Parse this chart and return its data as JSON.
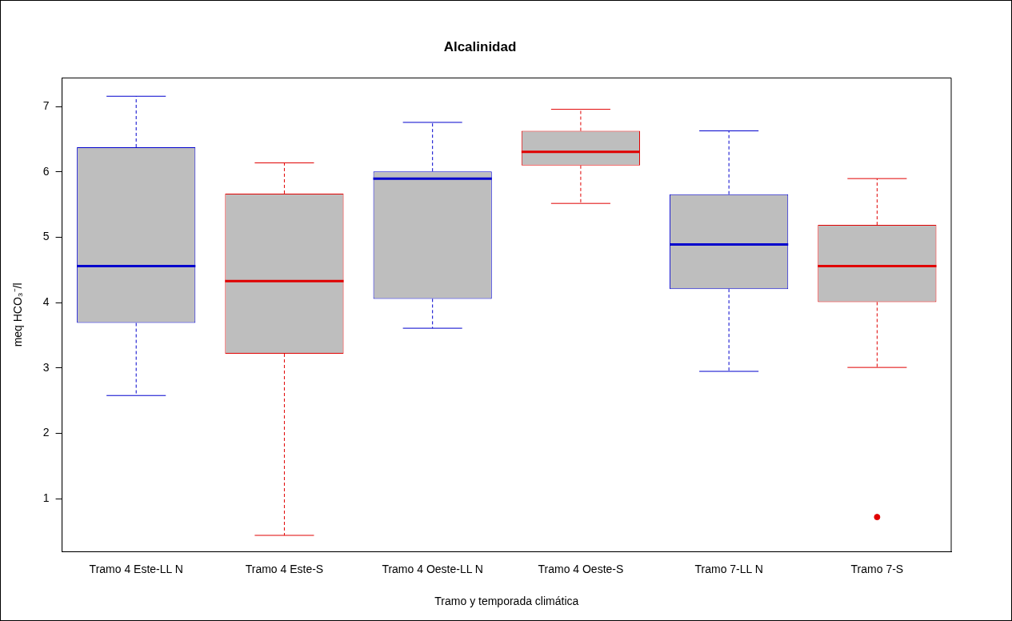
{
  "chart_data": {
    "type": "box",
    "title": "Alcalinidad",
    "xlabel": "Tramo y temporada climática",
    "ylabel": "meq HCO₃⁻/l",
    "categories": [
      "Tramo 4 Este-LL N",
      "Tramo 4 Este-S",
      "Tramo 4 Oeste-LL N",
      "Tramo 4 Oeste-S",
      "Tramo 7-LL N",
      "Tramo 7-S"
    ],
    "colors": [
      "#0000cd",
      "#e00000",
      "#0000cd",
      "#e00000",
      "#0000cd",
      "#e00000"
    ],
    "boxes": [
      {
        "low": 2.58,
        "q1": 3.69,
        "median": 4.56,
        "q3": 6.38,
        "high": 7.16
      },
      {
        "low": 0.44,
        "q1": 3.22,
        "median": 4.33,
        "q3": 5.67,
        "high": 6.14
      },
      {
        "low": 3.61,
        "q1": 4.06,
        "median": 5.9,
        "q3": 6.01,
        "high": 6.76
      },
      {
        "low": 5.52,
        "q1": 6.1,
        "median": 6.31,
        "q3": 6.63,
        "high": 6.96
      },
      {
        "low": 2.95,
        "q1": 4.21,
        "median": 4.89,
        "q3": 5.66,
        "high": 6.63
      },
      {
        "low": 3.01,
        "q1": 4.01,
        "median": 4.56,
        "q3": 5.19,
        "high": 5.9,
        "outliers": [
          0.72
        ]
      }
    ],
    "ylim": [
      0.19,
      7.44
    ],
    "yticks": [
      1,
      2,
      3,
      4,
      5,
      6,
      7
    ],
    "grid": false,
    "legend": false
  }
}
